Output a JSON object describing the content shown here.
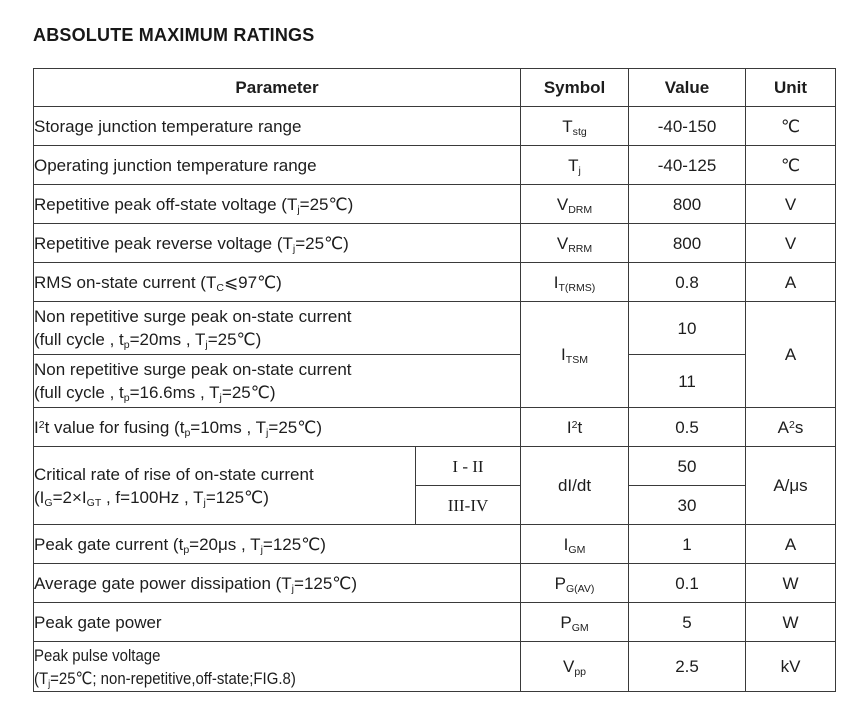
{
  "title": "ABSOLUTE MAXIMUM RATINGS",
  "table": {
    "headers": {
      "parameter": "Parameter",
      "symbol": "Symbol",
      "value": "Value",
      "unit": "Unit"
    },
    "rows_top": [
      {
        "parameter": "Storage junction temperature range",
        "symbol": "T~stg~",
        "value": "-40-150",
        "unit": "℃"
      },
      {
        "parameter": "Operating junction temperature range",
        "symbol": "T~j~",
        "value": "-40-125",
        "unit": "℃"
      },
      {
        "parameter": "Repetitive peak off-state voltage (T~j~=25℃)",
        "symbol": "V~DRM~",
        "value": "800",
        "unit": "V"
      },
      {
        "parameter": "Repetitive peak reverse voltage (T~j~=25℃)",
        "symbol": "V~RRM~",
        "value": "800",
        "unit": "V"
      },
      {
        "parameter": "RMS on-state current (T~C~⩽97℃)",
        "symbol": "I~T(RMS)~",
        "value": "0.8",
        "unit": "A"
      }
    ],
    "surge_group": {
      "symbol": "I~TSM~",
      "unit": "A",
      "rows": [
        {
          "line1": "Non repetitive surge peak on-state current",
          "line2": "(full cycle , t~p~=20ms , T~j~=25℃)",
          "value": "10"
        },
        {
          "line1": "Non repetitive surge peak on-state current",
          "line2": "(full cycle , t~p~=16.6ms , T~j~=25℃)",
          "value": "11"
        }
      ]
    },
    "i2t_row": {
      "parameter": "I^2^t value for fusing (t~p~=10ms , T~j~=25℃)",
      "symbol": "I^2^t",
      "value": "0.5",
      "unit": "A^2^s"
    },
    "didt_group": {
      "line1": "Critical rate of rise of on-state current",
      "line2": "(I~G~=2×I~GT~ , f=100Hz , T~j~=125℃)",
      "symbol": "dI/dt",
      "unit": "A/μs",
      "rows": [
        {
          "class": "I - II",
          "value": "50"
        },
        {
          "class": "III-IV",
          "value": "30"
        }
      ]
    },
    "rows_bottom": [
      {
        "parameter": "Peak gate current (t~p~=20μs , T~j~=125℃)",
        "symbol": "I~GM~",
        "value": "1",
        "unit": "A"
      },
      {
        "parameter": "Average gate power dissipation (T~j~=125℃)",
        "symbol": "P~G(AV)~",
        "value": "0.1",
        "unit": "W"
      },
      {
        "parameter": "Peak gate power",
        "symbol": "P~GM~",
        "value": "5",
        "unit": "W"
      }
    ],
    "last_row": {
      "line1": "Peak pulse voltage",
      "line2": "(T~j~=25℃; non-repetitive,off-state;FIG.8)",
      "symbol": "V~pp~",
      "value": "2.5",
      "unit": "kV"
    }
  }
}
